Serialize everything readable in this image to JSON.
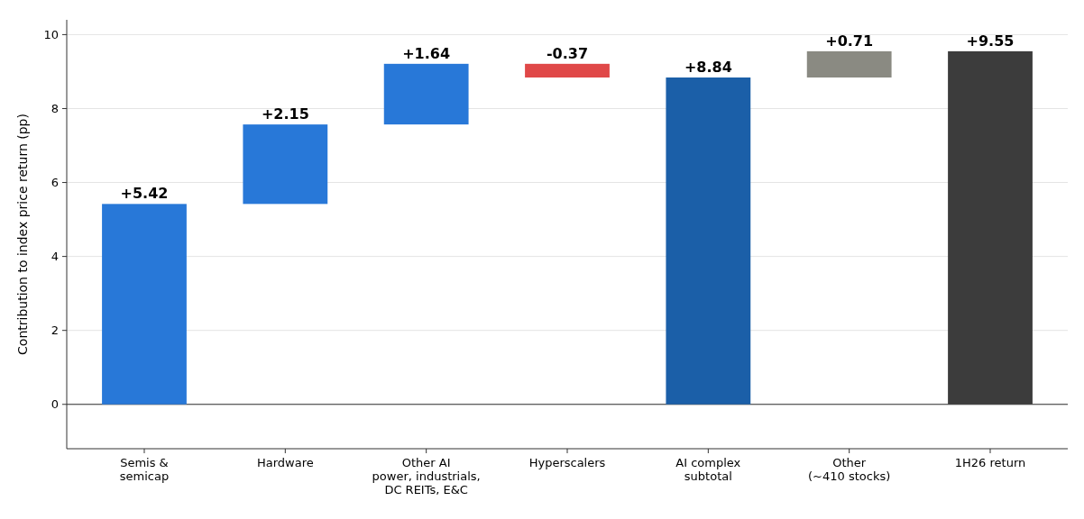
{
  "chart_data": {
    "type": "bar",
    "ylabel": "Contribution to index price return (pp)",
    "categories": [
      "Semis &\nsemicap",
      "Hardware",
      "Other AI\npower, industrials,\nDC REITs, E&C",
      "Hyperscalers",
      "AI complex\nsubtotal",
      "Other\n(~410 stocks)",
      "1H26 return"
    ],
    "values": [
      5.42,
      2.15,
      1.64,
      -0.37,
      8.84,
      0.71,
      9.55
    ],
    "base": [
      0,
      5.42,
      7.57,
      9.21,
      0,
      8.84,
      0
    ],
    "colors": [
      "#2878d8",
      "#2878d8",
      "#2878d8",
      "#e04848",
      "#1b5fa8",
      "#8a8a82",
      "#3c3c3c"
    ],
    "value_labels": [
      "+5.42",
      "+2.15",
      "+1.64",
      "-0.37",
      "+8.84",
      "+0.71",
      "+9.55"
    ],
    "ylim": [
      -1.2,
      10.4
    ],
    "yticks": [
      0,
      2,
      4,
      6,
      8,
      10
    ],
    "grid": "y"
  }
}
